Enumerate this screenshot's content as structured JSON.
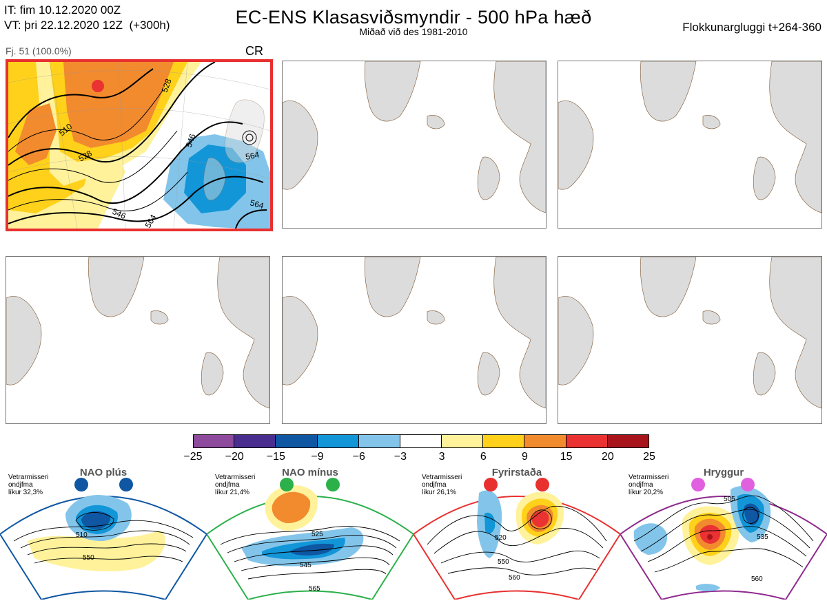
{
  "header": {
    "run_time": "IT: fim 10.12.2020 00Z",
    "valid_time": "VT: þri 22.12.2020 12Z  (+300h)",
    "title": "EC-ENS Klasasviðsmyndir - 500 hPa hæð",
    "subtitle": "Miðað við des 1981-2010",
    "window": "Flokkunargluggi t+264-360"
  },
  "cluster": {
    "member_count": "Fj. 51 (100.0%)",
    "regime_code": "CR",
    "contour_labels": [
      "510",
      "528",
      "528",
      "546",
      "546",
      "564",
      "564",
      "564"
    ]
  },
  "colorbar": {
    "ticks": [
      "−25",
      "−20",
      "−15",
      "−9",
      "−6",
      "−3",
      "3",
      "6",
      "9",
      "15",
      "20",
      "25"
    ],
    "colors": [
      "#8e4a9d",
      "#4a2e8f",
      "#0f57a3",
      "#1296d8",
      "#83c5ea",
      "#ffffff",
      "#fff29b",
      "#ffd11a",
      "#f28a2e",
      "#ea3232",
      "#a8141b"
    ]
  },
  "regimes": [
    {
      "name": "NAO plús",
      "note": "Vetrarmisseri\nondjfma\nlíkur 32,3%",
      "color": "#0f57a3",
      "labels": [
        "510",
        "550"
      ]
    },
    {
      "name": "NAO mínus",
      "note": "Vetrarmisseri\nondjfma\nlíkur 21,4%",
      "color": "#2bb04a",
      "labels": [
        "525",
        "545",
        "565"
      ]
    },
    {
      "name": "Fyrirstaða",
      "note": "Vetrarmisseri\nondjfma\nlíkur 26,1%",
      "color": "#e8302f",
      "labels": [
        "520",
        "550",
        "560"
      ]
    },
    {
      "name": "Hryggur",
      "note": "Vetrarmisseri\nondjfma\nlíkur 20,2%",
      "color": "#e060e0",
      "labels": [
        "505",
        "535",
        "560"
      ]
    }
  ],
  "colors": {
    "land": "#dcdcdc",
    "coast": "#8a6a4a",
    "selected_frame": "#e8302f"
  }
}
